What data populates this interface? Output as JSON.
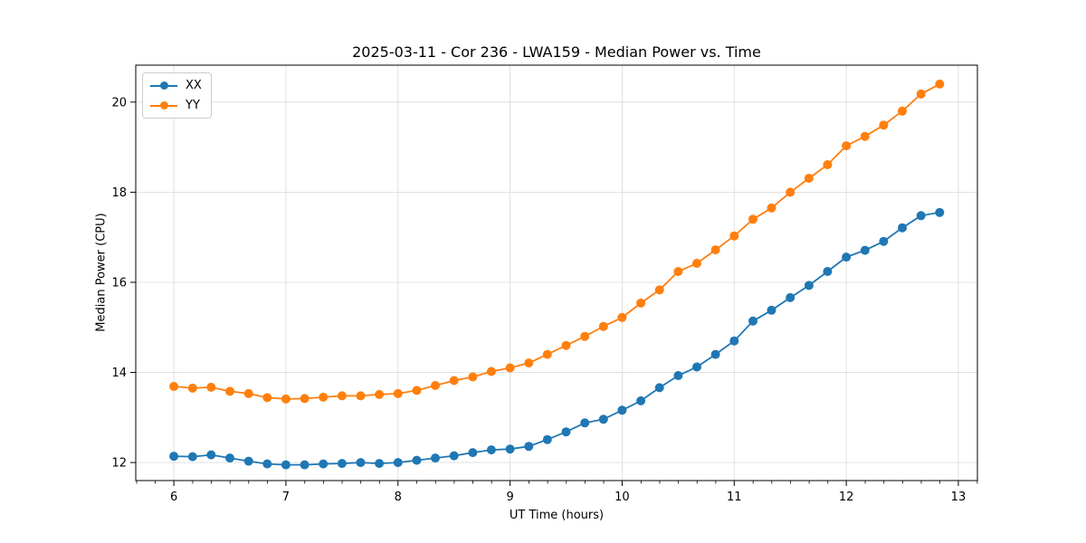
{
  "chart_data": {
    "type": "line",
    "title": "2025-03-11 - Cor 236 - LWA159 - Median Power vs. Time",
    "xlabel": "UT Time (hours)",
    "ylabel": "Median Power (CPU)",
    "xlim": [
      5.66,
      13.17
    ],
    "ylim": [
      11.6,
      20.82
    ],
    "x_ticks": [
      6,
      7,
      8,
      9,
      10,
      11,
      12,
      13
    ],
    "x_minor_tick_step": 0.1667,
    "y_ticks": [
      12,
      14,
      16,
      18,
      20
    ],
    "grid": true,
    "legend_position": "upper-left",
    "background_color": "#ffffff",
    "grid_color": "#dcdcdc",
    "spine_color": "#000000",
    "x": [
      6.0,
      6.167,
      6.333,
      6.5,
      6.667,
      6.833,
      7.0,
      7.167,
      7.333,
      7.5,
      7.667,
      7.833,
      8.0,
      8.167,
      8.333,
      8.5,
      8.667,
      8.833,
      9.0,
      9.167,
      9.333,
      9.5,
      9.667,
      9.833,
      10.0,
      10.167,
      10.333,
      10.5,
      10.667,
      10.833,
      11.0,
      11.167,
      11.333,
      11.5,
      11.667,
      11.833,
      12.0,
      12.167,
      12.333,
      12.5,
      12.667,
      12.833
    ],
    "series": [
      {
        "name": "XX",
        "color": "#1f77b4",
        "values": [
          12.14,
          12.13,
          12.17,
          12.1,
          12.03,
          11.97,
          11.95,
          11.95,
          11.97,
          11.98,
          12.0,
          11.98,
          12.0,
          12.05,
          12.1,
          12.15,
          12.22,
          12.28,
          12.3,
          12.36,
          12.51,
          12.68,
          12.88,
          12.96,
          13.16,
          13.37,
          13.66,
          13.93,
          14.12,
          14.4,
          14.7,
          15.14,
          15.38,
          15.66,
          15.93,
          16.24,
          16.56,
          16.71,
          16.91,
          17.21,
          17.48,
          17.55
        ]
      },
      {
        "name": "YY",
        "color": "#ff7f0e",
        "values": [
          13.69,
          13.65,
          13.67,
          13.58,
          13.53,
          13.44,
          13.41,
          13.42,
          13.45,
          13.48,
          13.48,
          13.51,
          13.53,
          13.6,
          13.71,
          13.82,
          13.9,
          14.02,
          14.1,
          14.21,
          14.4,
          14.6,
          14.8,
          15.02,
          15.22,
          15.54,
          15.83,
          16.24,
          16.42,
          16.72,
          17.03,
          17.4,
          17.65,
          18.0,
          18.31,
          18.61,
          19.03,
          19.24,
          19.49,
          19.8,
          20.18,
          20.4
        ]
      }
    ]
  }
}
